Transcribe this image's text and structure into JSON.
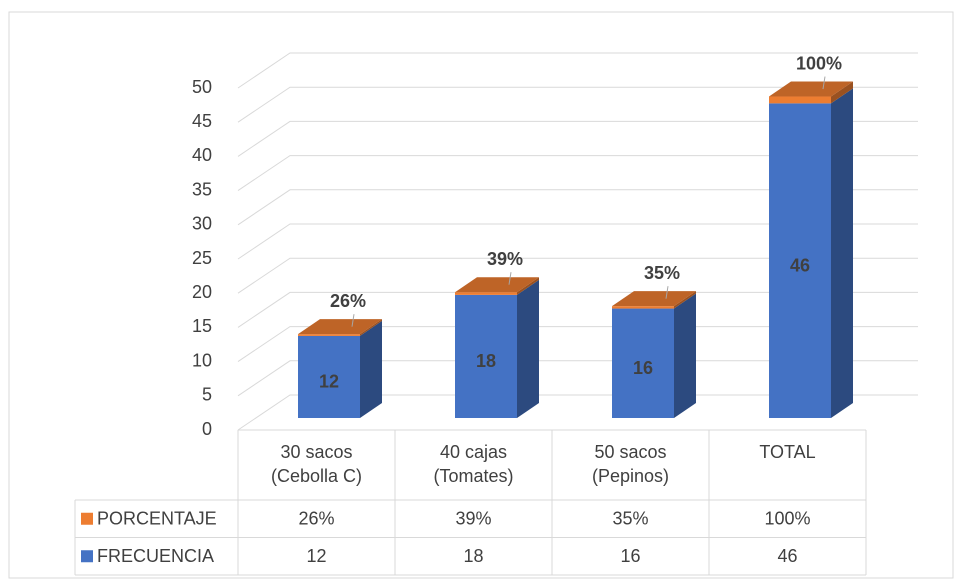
{
  "chart_data": {
    "type": "bar3d_stacked",
    "categories": [
      "30 sacos (Cebolla C)",
      "40 cajas (Tomates)",
      "50 sacos (Pepinos)",
      "TOTAL"
    ],
    "series": [
      {
        "name": "PORCENTAJE",
        "color": "#ed7d31",
        "values": [
          0.26,
          0.39,
          0.35,
          1
        ],
        "value_labels": [
          "26%",
          "39%",
          "35%",
          "100%"
        ]
      },
      {
        "name": "FRECUENCIA",
        "color": "#4472c4",
        "values": [
          12,
          18,
          16,
          46
        ]
      }
    ],
    "ylim": [
      0,
      50
    ],
    "yticks": [
      0,
      5,
      10,
      15,
      20,
      25,
      30,
      35,
      40,
      45,
      50
    ],
    "grid": true,
    "legend": "table"
  }
}
